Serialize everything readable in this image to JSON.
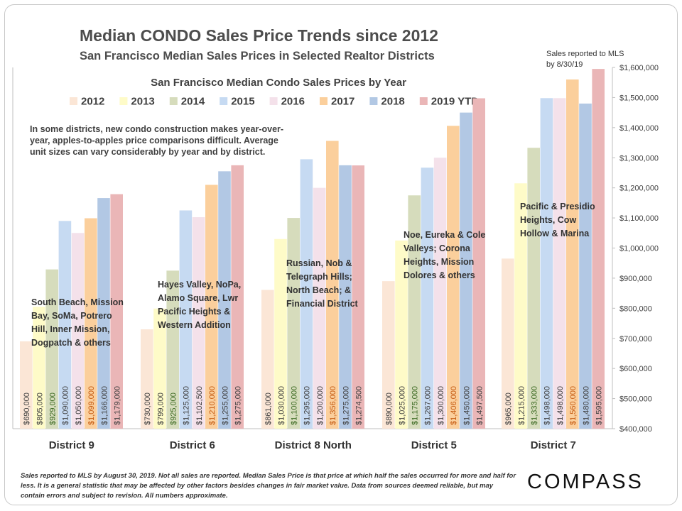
{
  "title": "Median CONDO Sales Price Trends since 2012",
  "subtitle": "San Francisco Median Sales Prices in Selected Realtor Districts",
  "note_top": "Sales reported to MLS by 8/30/19",
  "commentary": "In some districts, new condo construction makes year-over-year, apples-to-apples price comparisons difficult. Average unit sizes can vary considerably by year and by district.",
  "footnote": "Sales reported to MLS by August 30, 2019. Not all sales are reported. Median Sales Price is that price at which half the sales occurred for more and half for less. It is a general statistic that may be affected by other factors besides changes in fair market value. Data from sources deemed reliable, but may contain errors and subject to revision. All numbers approximate.",
  "logo": "COMPASS",
  "chart_data": {
    "type": "bar",
    "title": "San Francisco Median Condo Sales Prices by Year",
    "xlabel": "",
    "ylabel": "",
    "ylim": [
      400000,
      1600000
    ],
    "y_ticks": [
      400000,
      500000,
      600000,
      700000,
      800000,
      900000,
      1000000,
      1100000,
      1200000,
      1300000,
      1400000,
      1500000,
      1600000
    ],
    "y_tick_labels": [
      "$400,000",
      "$500,000",
      "$600,000",
      "$700,000",
      "$800,000",
      "$900,000",
      "$1,000,000",
      "$1,100,000",
      "$1,200,000",
      "$1,300,000",
      "$1,400,000",
      "$1,500,000",
      "$1,600,000"
    ],
    "grid": false,
    "legend_position": "top",
    "categories": [
      "District 9",
      "District 6",
      "District 8 North",
      "District 5",
      "District 7"
    ],
    "category_descriptions": [
      "South Beach, Mission Bay, SoMa, Potrero Hill, Inner Mission, Dogpatch & others",
      "Hayes Valley, NoPa, Alamo Square, Lwr Pacific Heights & Western Addition",
      "Russian, Nob & Telegraph Hills; North Beach; & Financial District",
      "Noe, Eureka & Cole Valleys; Corona Heights, Mission Dolores & others",
      "Pacific & Presidio Heights, Cow Hollow & Marina"
    ],
    "series": [
      {
        "name": "2012",
        "color": "#fbe6d6",
        "label_color": "#404040",
        "values": [
          690000,
          730000,
          861000,
          890000,
          965000
        ],
        "labels": [
          "$690,000",
          "$730,000",
          "$861,000",
          "$890,000",
          "$965,000"
        ]
      },
      {
        "name": "2013",
        "color": "#fefbc8",
        "label_color": "#404040",
        "values": [
          805000,
          799000,
          1030000,
          1025000,
          1215000
        ],
        "labels": [
          "$805,000",
          "$799,000",
          "$1,030,000",
          "$1,025,000",
          "$1,215,000"
        ]
      },
      {
        "name": "2014",
        "color": "#d6dcbc",
        "label_color": "#3c6a22",
        "values": [
          929000,
          925000,
          1100000,
          1175000,
          1333000
        ],
        "labels": [
          "$929,000",
          "$925,000",
          "$1,100,000",
          "$1,175,000",
          "$1,333,000"
        ]
      },
      {
        "name": "2015",
        "color": "#c6daf2",
        "label_color": "#404040",
        "values": [
          1090000,
          1125000,
          1295000,
          1267000,
          1498000
        ],
        "labels": [
          "$1,090,000",
          "$1,125,000",
          "$1,295,000",
          "$1,267,000",
          "$1,498,000"
        ]
      },
      {
        "name": "2016",
        "color": "#f4e1ea",
        "label_color": "#404040",
        "values": [
          1050000,
          1102500,
          1200000,
          1300000,
          1498000
        ],
        "labels": [
          "$1,050,000",
          "$1,102,500",
          "$1,200,000",
          "$1,300,000",
          "$1,498,000"
        ]
      },
      {
        "name": "2017",
        "color": "#fbcf9c",
        "label_color": "#c55a11",
        "values": [
          1099000,
          1210000,
          1356000,
          1406000,
          1560000
        ],
        "labels": [
          "$1,099,000",
          "$1,210,000",
          "$1,356,000",
          "$1,406,000",
          "$1,560,000"
        ]
      },
      {
        "name": "2018",
        "color": "#b2c8e4",
        "label_color": "#404040",
        "values": [
          1166000,
          1255000,
          1275000,
          1450000,
          1480000
        ],
        "labels": [
          "$1,166,000",
          "$1,255,000",
          "$1,275,000",
          "$1,450,000",
          "$1,480,000"
        ]
      },
      {
        "name": "2019 YTD",
        "color": "#eab6b7",
        "label_color": "#404040",
        "values": [
          1179000,
          1275000,
          1274500,
          1497500,
          1595000
        ],
        "labels": [
          "$1,179,000",
          "$1,275,000",
          "$1,274,500",
          "$1,497,500",
          "$1,595,000"
        ]
      }
    ]
  }
}
